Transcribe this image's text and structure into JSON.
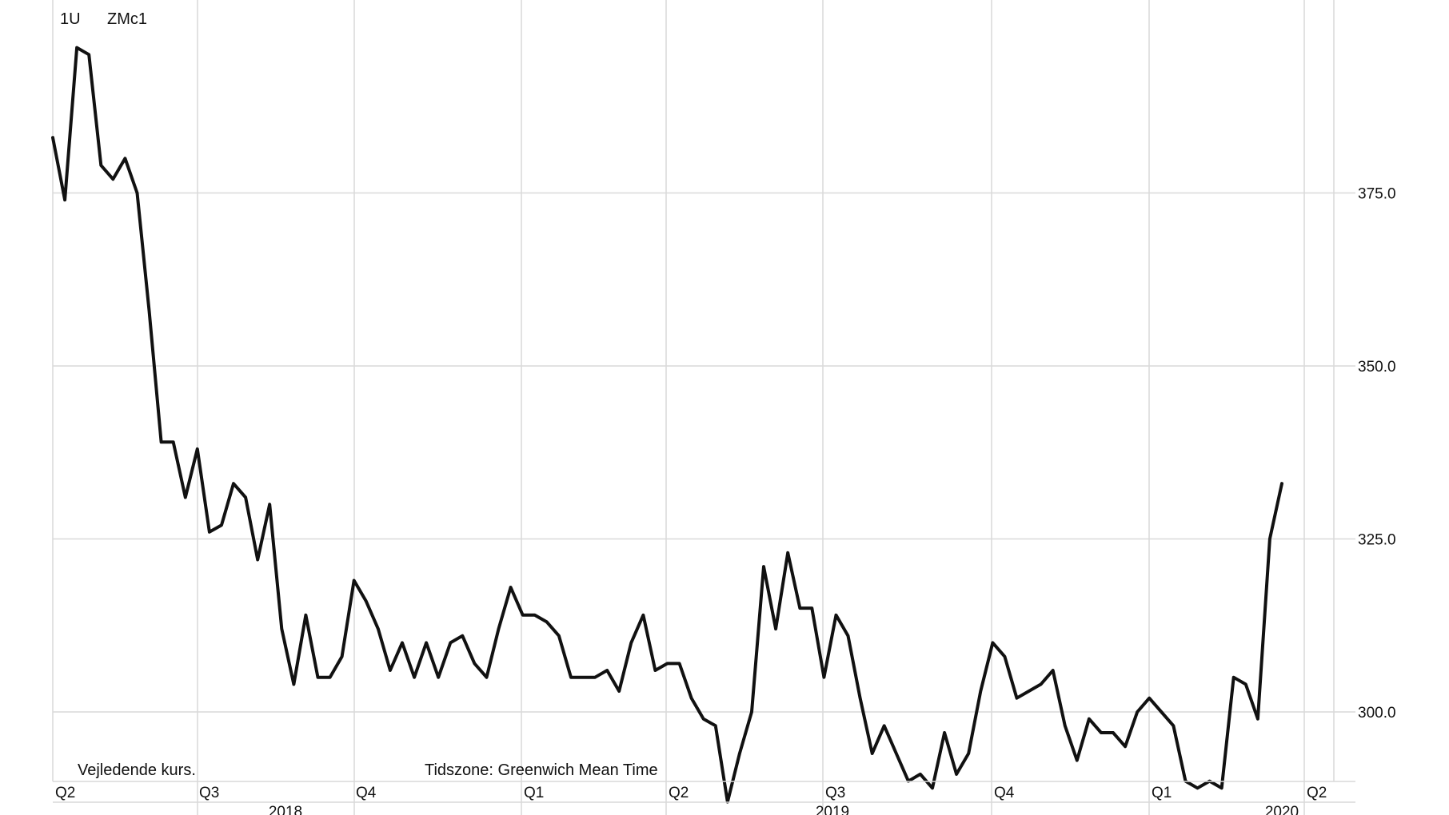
{
  "header": {
    "interval": "1U",
    "symbol": "ZMc1"
  },
  "footer": {
    "note": "Vejledende kurs.",
    "timezone": "Tidszone: Greenwich Mean Time"
  },
  "chart_data": {
    "type": "line",
    "title": "",
    "xlabel": "",
    "ylabel": "",
    "grid": true,
    "y_axis_side": "right",
    "yticks": [
      "375.0",
      "350.0",
      "325.0",
      "300.0"
    ],
    "ytick_values": [
      375,
      350,
      325,
      300
    ],
    "ylim": [
      286,
      397
    ],
    "quarter_ticks": [
      "Q2",
      "Q3",
      "Q4",
      "Q1",
      "Q2",
      "Q3",
      "Q4",
      "Q1",
      "Q2"
    ],
    "year_labels": [
      "2018",
      "2019",
      "2020"
    ],
    "series": [
      {
        "color": "#111111",
        "values": [
          383,
          374,
          396,
          395,
          379,
          377,
          380,
          375,
          358,
          339,
          339,
          331,
          338,
          326,
          327,
          333,
          331,
          322,
          330,
          312,
          304,
          314,
          305,
          305,
          308,
          319,
          316,
          312,
          306,
          310,
          305,
          310,
          305,
          310,
          311,
          307,
          305,
          312,
          318,
          314,
          314,
          313,
          311,
          305,
          305,
          305,
          306,
          303,
          310,
          314,
          306,
          307,
          307,
          302,
          299,
          298,
          287,
          294,
          300,
          321,
          312,
          323,
          315,
          315,
          305,
          314,
          311,
          302,
          294,
          298,
          294,
          290,
          291,
          289,
          297,
          291,
          294,
          303,
          310,
          308,
          302,
          303,
          304,
          306,
          298,
          293,
          299,
          297,
          297,
          295,
          300,
          302,
          300,
          298,
          290,
          289,
          290,
          289,
          305,
          304,
          299,
          325,
          333
        ]
      }
    ]
  }
}
